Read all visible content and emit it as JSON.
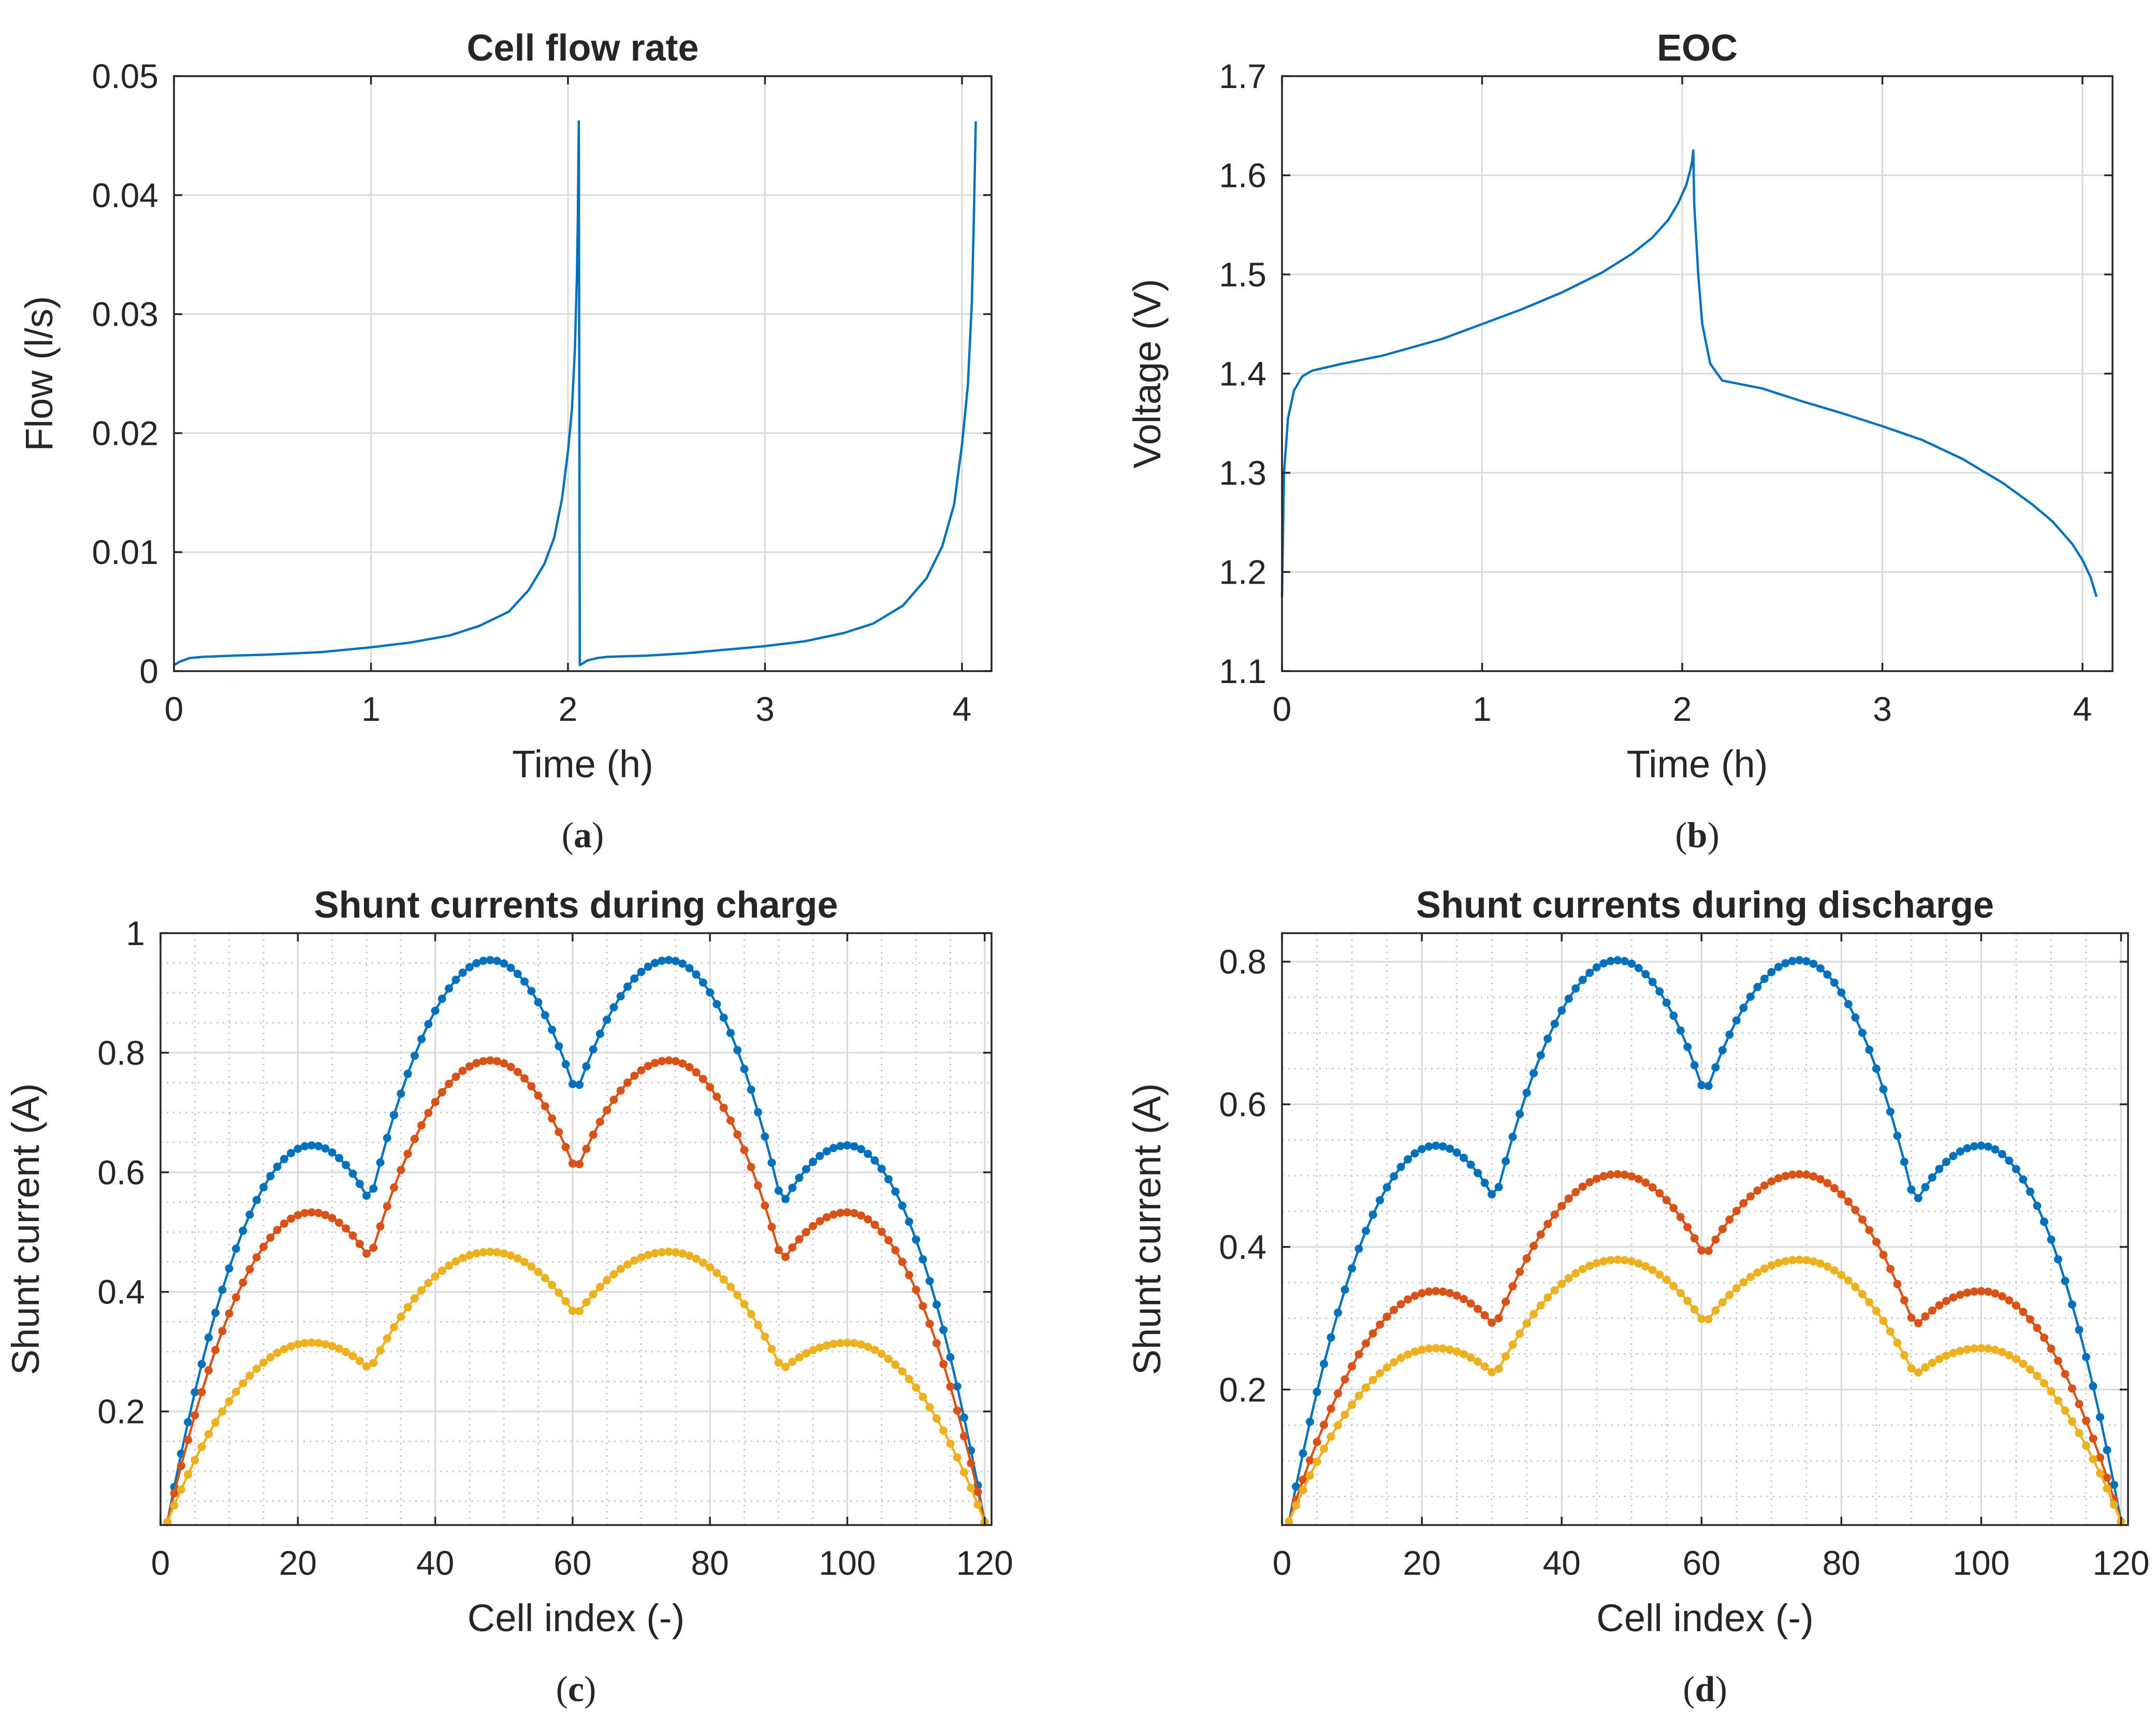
{
  "colors": {
    "series1": "#0072bd",
    "series2": "#d95319",
    "series3": "#edb120",
    "axis": "#262626",
    "grid": "#d9d9d9",
    "minorGrid": "#c8c8c8"
  },
  "chart_data": [
    {
      "type": "line",
      "caption_letter": "a",
      "title": "Cell flow rate",
      "xlabel": "Time (h)",
      "ylabel": "Flow (l/s)",
      "xlim": [
        0,
        4.15
      ],
      "ylim": [
        0,
        0.05
      ],
      "xticks": [
        0,
        1,
        2,
        3,
        4
      ],
      "xtick_labels": [
        "0",
        "1",
        "2",
        "3",
        "4"
      ],
      "yticks": [
        0,
        0.01,
        0.02,
        0.03,
        0.04,
        0.05
      ],
      "ytick_labels": [
        "0",
        "0.01",
        "0.02",
        "0.03",
        "0.04",
        "0.05"
      ],
      "grid": true,
      "minor_grid": false,
      "series": [
        {
          "color": "#0072bd",
          "x": [
            0,
            0.03,
            0.08,
            0.15,
            0.3,
            0.5,
            0.75,
            1.0,
            1.2,
            1.4,
            1.55,
            1.7,
            1.8,
            1.88,
            1.93,
            1.97,
            2.0,
            2.02,
            2.035,
            2.045,
            2.05,
            2.055,
            2.06,
            2.1,
            2.15,
            2.2,
            2.4,
            2.6,
            2.8,
            3.0,
            3.2,
            3.4,
            3.55,
            3.7,
            3.82,
            3.9,
            3.96,
            4.0,
            4.03,
            4.05,
            4.06,
            4.07
          ],
          "y": [
            0.0005,
            0.0008,
            0.0011,
            0.0012,
            0.0013,
            0.0014,
            0.0016,
            0.002,
            0.0024,
            0.003,
            0.0038,
            0.005,
            0.0068,
            0.009,
            0.0112,
            0.0145,
            0.0185,
            0.022,
            0.027,
            0.033,
            0.038,
            0.0462,
            0.0005,
            0.0009,
            0.0011,
            0.0012,
            0.0013,
            0.0015,
            0.0018,
            0.0021,
            0.0025,
            0.0032,
            0.004,
            0.0055,
            0.0078,
            0.0105,
            0.014,
            0.019,
            0.024,
            0.031,
            0.038,
            0.0462
          ]
        }
      ]
    },
    {
      "type": "line",
      "caption_letter": "b",
      "title": "EOC",
      "xlabel": "Time (h)",
      "ylabel": "Voltage (V)",
      "xlim": [
        0,
        4.15
      ],
      "ylim": [
        1.1,
        1.7
      ],
      "xticks": [
        0,
        1,
        2,
        3,
        4
      ],
      "xtick_labels": [
        "0",
        "1",
        "2",
        "3",
        "4"
      ],
      "yticks": [
        1.1,
        1.2,
        1.3,
        1.4,
        1.5,
        1.6,
        1.7
      ],
      "ytick_labels": [
        "1.1",
        "1.2",
        "1.3",
        "1.4",
        "1.5",
        "1.6",
        "1.7"
      ],
      "grid": true,
      "minor_grid": false,
      "series": [
        {
          "color": "#0072bd",
          "x": [
            0,
            0.01,
            0.03,
            0.06,
            0.1,
            0.15,
            0.3,
            0.5,
            0.8,
            1.0,
            1.2,
            1.4,
            1.6,
            1.75,
            1.85,
            1.93,
            1.98,
            2.02,
            2.04,
            2.05,
            2.055,
            2.06,
            2.08,
            2.1,
            2.14,
            2.2,
            2.4,
            2.6,
            2.8,
            3.0,
            3.2,
            3.4,
            3.6,
            3.75,
            3.85,
            3.95,
            4.0,
            4.04,
            4.07
          ],
          "y": [
            1.175,
            1.3,
            1.355,
            1.383,
            1.397,
            1.403,
            1.41,
            1.418,
            1.435,
            1.45,
            1.465,
            1.482,
            1.502,
            1.521,
            1.537,
            1.555,
            1.572,
            1.59,
            1.605,
            1.615,
            1.625,
            1.57,
            1.5,
            1.45,
            1.41,
            1.393,
            1.385,
            1.372,
            1.36,
            1.347,
            1.333,
            1.314,
            1.29,
            1.268,
            1.251,
            1.228,
            1.212,
            1.195,
            1.175
          ]
        }
      ]
    },
    {
      "type": "line",
      "caption_letter": "c",
      "title": "Shunt currents during charge",
      "xlabel": "Cell index (-)",
      "ylabel": "Shunt current (A)",
      "xlim": [
        0,
        121
      ],
      "ylim": [
        0.01,
        1.0
      ],
      "xticks": [
        0,
        20,
        40,
        60,
        80,
        100,
        120
      ],
      "xtick_labels": [
        "0",
        "20",
        "40",
        "60",
        "80",
        "100",
        "120"
      ],
      "yticks": [
        0.2,
        0.4,
        0.6,
        0.8,
        1.0
      ],
      "ytick_labels": [
        "0.2",
        "0.4",
        "0.6",
        "0.8",
        "1"
      ],
      "grid": true,
      "minor_grid": true,
      "markers": true,
      "cell_count": 120,
      "series": [
        {
          "color": "#0072bd",
          "end_value": 0.015,
          "dip_values": [
            0.55,
            0.73,
            0.545
          ],
          "hump_peaks": [
            0.645,
            0.955,
            0.955,
            0.645
          ]
        },
        {
          "color": "#d95319",
          "end_value": 0.015,
          "dip_values": [
            0.455,
            0.6,
            0.45
          ],
          "hump_peaks": [
            0.533,
            0.787,
            0.787,
            0.533
          ]
        },
        {
          "color": "#edb120",
          "end_value": 0.015,
          "dip_values": [
            0.27,
            0.36,
            0.27
          ],
          "hump_peaks": [
            0.315,
            0.467,
            0.467,
            0.315
          ]
        }
      ]
    },
    {
      "type": "line",
      "caption_letter": "d",
      "title": "Shunt currents during discharge",
      "xlabel": "Cell index (-)",
      "ylabel": "Shunt current (A)",
      "xlim": [
        0,
        121
      ],
      "ylim": [
        0.01,
        0.84
      ],
      "xticks": [
        0,
        20,
        40,
        60,
        80,
        100,
        120
      ],
      "xtick_labels": [
        "0",
        "20",
        "40",
        "60",
        "80",
        "100",
        "120"
      ],
      "yticks": [
        0.2,
        0.4,
        0.6,
        0.8
      ],
      "ytick_labels": [
        "0.2",
        "0.4",
        "0.6",
        "0.8"
      ],
      "grid": true,
      "minor_grid": true,
      "markers": true,
      "cell_count": 120,
      "series": [
        {
          "color": "#0072bd",
          "end_value": 0.015,
          "dip_values": [
            0.465,
            0.612,
            0.46
          ],
          "hump_peaks": [
            0.542,
            0.802,
            0.802,
            0.542
          ]
        },
        {
          "color": "#d95319",
          "end_value": 0.015,
          "dip_values": [
            0.288,
            0.386,
            0.288
          ],
          "hump_peaks": [
            0.338,
            0.502,
            0.502,
            0.338
          ]
        },
        {
          "color": "#edb120",
          "end_value": 0.015,
          "dip_values": [
            0.22,
            0.292,
            0.22
          ],
          "hump_peaks": [
            0.258,
            0.382,
            0.382,
            0.258
          ]
        }
      ]
    }
  ]
}
